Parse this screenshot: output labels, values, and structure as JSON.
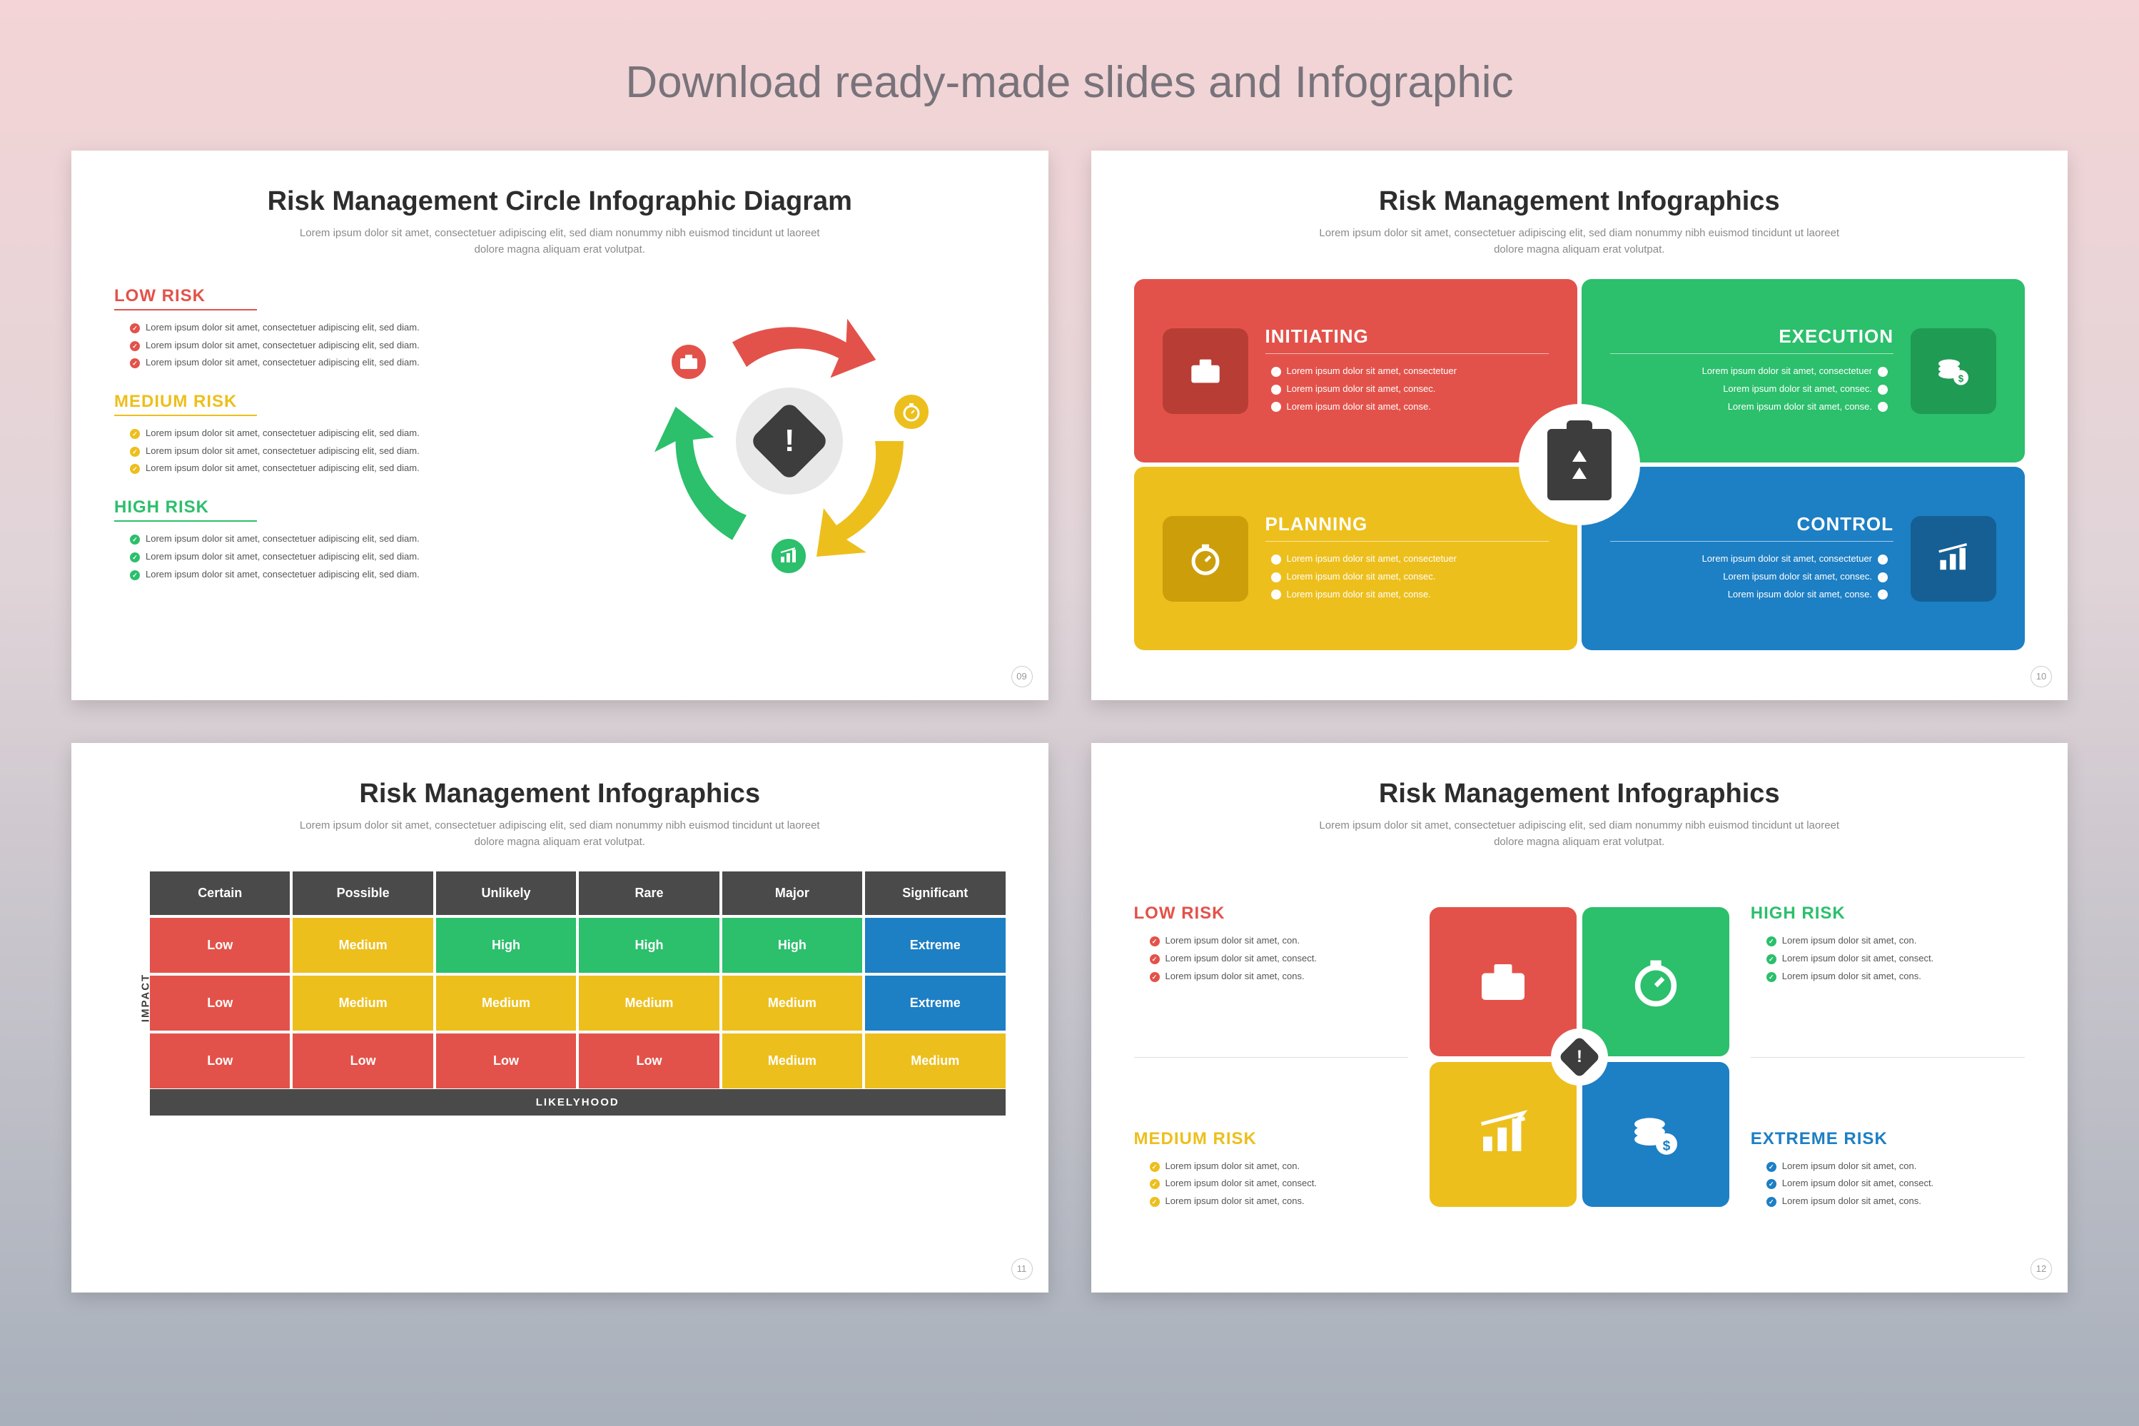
{
  "page_title": "Download ready-made slides and Infographic",
  "colors": {
    "red": "#e3524a",
    "red_dark": "#b83d35",
    "yellow": "#edbf1d",
    "yellow_dark": "#cc9e0a",
    "green": "#2cbf6c",
    "green_dark": "#1f9b54",
    "blue": "#1d7fc4",
    "blue_dark": "#155f94",
    "dark": "#3d3d3d",
    "header_dark": "#4a4a4a"
  },
  "lorem": "Lorem ipsum dolor sit amet, consectetuer adipiscing elit, sed diam nonummy nibh euismod tincidunt ut laoreet dolore magna aliquam erat volutpat.",
  "slide1": {
    "title": "Risk Management Circle Infographic Diagram",
    "page": "09",
    "items": [
      {
        "label": "LOW RISK",
        "color": "#e3524a",
        "lines": [
          "Lorem ipsum dolor sit amet, consectetuer adipiscing elit, sed diam.",
          "Lorem ipsum dolor sit amet, consectetuer adipiscing elit, sed diam.",
          "Lorem ipsum dolor sit amet, consectetuer adipiscing elit, sed diam."
        ]
      },
      {
        "label": "MEDIUM RISK",
        "color": "#edbf1d",
        "lines": [
          "Lorem ipsum dolor sit amet, consectetuer adipiscing elit, sed diam.",
          "Lorem ipsum dolor sit amet, consectetuer adipiscing elit, sed diam.",
          "Lorem ipsum dolor sit amet, consectetuer adipiscing elit, sed diam."
        ]
      },
      {
        "label": "HIGH RISK",
        "color": "#2cbf6c",
        "lines": [
          "Lorem ipsum dolor sit amet, consectetuer adipiscing elit, sed diam.",
          "Lorem ipsum dolor sit amet, consectetuer adipiscing elit, sed diam.",
          "Lorem ipsum dolor sit amet, consectetuer adipiscing elit, sed diam."
        ]
      }
    ]
  },
  "slide2": {
    "title": "Risk Management Infographics",
    "page": "10",
    "quads": [
      {
        "label": "INITIATING",
        "color": "#e3524a",
        "tab": "#b83d35",
        "align": "left",
        "lines": [
          "Lorem ipsum dolor sit amet, consectetuer",
          "Lorem ipsum dolor sit amet, consec.",
          "Lorem ipsum dolor sit amet, conse."
        ]
      },
      {
        "label": "EXECUTION",
        "color": "#2cbf6c",
        "tab": "#1f9b54",
        "align": "right",
        "lines": [
          "Lorem ipsum dolor sit amet, consectetuer",
          "Lorem ipsum dolor sit amet, consec.",
          "Lorem ipsum dolor sit amet, conse."
        ]
      },
      {
        "label": "PLANNING",
        "color": "#edbf1d",
        "tab": "#cc9e0a",
        "align": "left",
        "lines": [
          "Lorem ipsum dolor sit amet, consectetuer",
          "Lorem ipsum dolor sit amet, consec.",
          "Lorem ipsum dolor sit amet, conse."
        ]
      },
      {
        "label": "CONTROL",
        "color": "#1d7fc4",
        "tab": "#155f94",
        "align": "right",
        "lines": [
          "Lorem ipsum dolor sit amet, consectetuer",
          "Lorem ipsum dolor sit amet, consec.",
          "Lorem ipsum dolor sit amet, conse."
        ]
      }
    ]
  },
  "slide3": {
    "title": "Risk Management Infographics",
    "page": "11",
    "axis_y": "IMPACT",
    "axis_x": "LIKELYHOOD",
    "headers": [
      "Certain",
      "Possible",
      "Unlikely",
      "Rare",
      "Major",
      "Significant"
    ],
    "rows": [
      [
        {
          "t": "Low",
          "c": "#e3524a"
        },
        {
          "t": "Medium",
          "c": "#edbf1d"
        },
        {
          "t": "High",
          "c": "#2cbf6c"
        },
        {
          "t": "High",
          "c": "#2cbf6c"
        },
        {
          "t": "High",
          "c": "#2cbf6c"
        },
        {
          "t": "Extreme",
          "c": "#1d7fc4"
        }
      ],
      [
        {
          "t": "Low",
          "c": "#e3524a"
        },
        {
          "t": "Medium",
          "c": "#edbf1d"
        },
        {
          "t": "Medium",
          "c": "#edbf1d"
        },
        {
          "t": "Medium",
          "c": "#edbf1d"
        },
        {
          "t": "Medium",
          "c": "#edbf1d"
        },
        {
          "t": "Extreme",
          "c": "#1d7fc4"
        }
      ],
      [
        {
          "t": "Low",
          "c": "#e3524a"
        },
        {
          "t": "Low",
          "c": "#e3524a"
        },
        {
          "t": "Low",
          "c": "#e3524a"
        },
        {
          "t": "Low",
          "c": "#e3524a"
        },
        {
          "t": "Medium",
          "c": "#edbf1d"
        },
        {
          "t": "Medium",
          "c": "#edbf1d"
        }
      ]
    ]
  },
  "slide4": {
    "title": "Risk Management Infographics",
    "page": "12",
    "left": [
      {
        "label": "LOW RISK",
        "color": "#e3524a",
        "lines": [
          "Lorem ipsum dolor sit amet, con.",
          "Lorem ipsum dolor sit amet, consect.",
          "Lorem ipsum dolor sit amet, cons."
        ]
      },
      {
        "label": "MEDIUM RISK",
        "color": "#edbf1d",
        "lines": [
          "Lorem ipsum dolor sit amet, con.",
          "Lorem ipsum dolor sit amet, consect.",
          "Lorem ipsum dolor sit amet, cons."
        ]
      }
    ],
    "right": [
      {
        "label": "HIGH RISK",
        "color": "#2cbf6c",
        "lines": [
          "Lorem ipsum dolor sit amet, con.",
          "Lorem ipsum dolor sit amet, consect.",
          "Lorem ipsum dolor sit amet, cons."
        ]
      },
      {
        "label": "EXTREME RISK",
        "color": "#1d7fc4",
        "lines": [
          "Lorem ipsum dolor sit amet, con.",
          "Lorem ipsum dolor sit amet, consect.",
          "Lorem ipsum dolor sit amet, cons."
        ]
      }
    ],
    "squares": [
      "#e3524a",
      "#2cbf6c",
      "#edbf1d",
      "#1d7fc4"
    ]
  }
}
